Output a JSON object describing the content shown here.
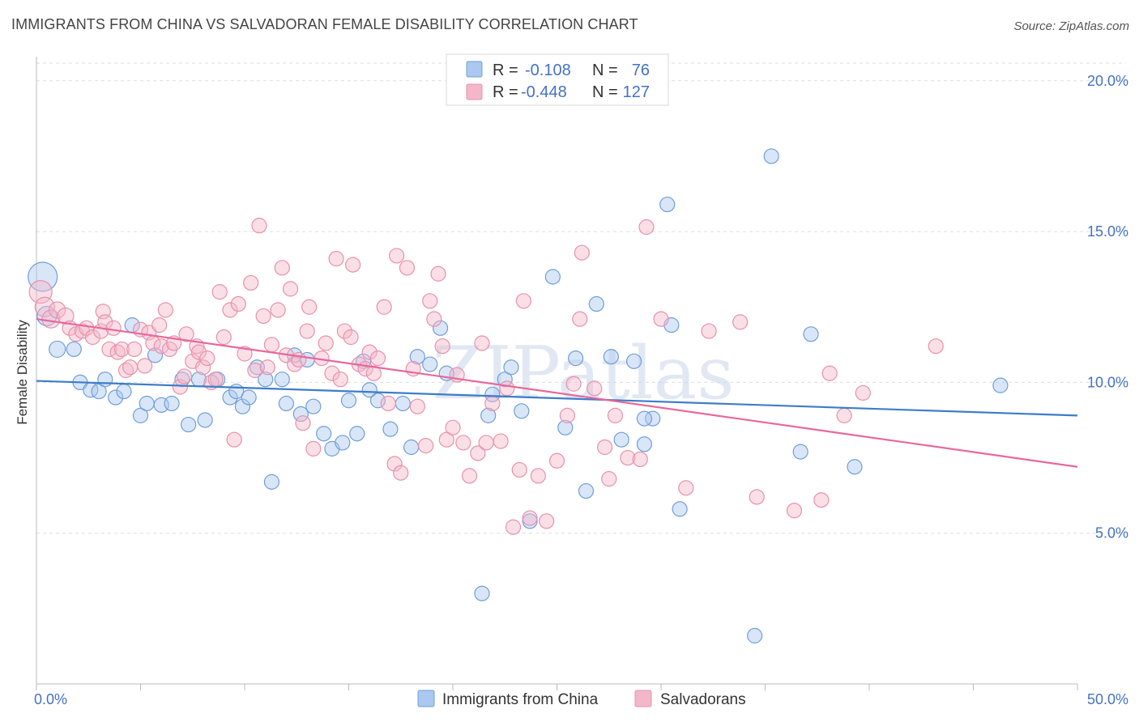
{
  "header": {
    "title": "IMMIGRANTS FROM CHINA VS SALVADORAN FEMALE DISABILITY CORRELATION CHART",
    "source": "Source: ZipAtlas.com"
  },
  "watermark": "ZIPatlas",
  "colors": {
    "blue_fill": "#aac8f0",
    "blue_stroke": "#6f9fd8",
    "blue_line": "#3d7cc9",
    "pink_fill": "#f4b7c9",
    "pink_stroke": "#e891ac",
    "pink_line": "#e8689a",
    "tick_text": "#4472c4",
    "grid": "#dddddd"
  },
  "legend": {
    "rows": [
      {
        "r_label": "R =",
        "r_value": "-0.108",
        "n_label": "N =",
        "n_value": "76",
        "series": "china"
      },
      {
        "r_label": "R =",
        "r_value": "-0.448",
        "n_label": "N =",
        "n_value": "127",
        "series": "salvadoran"
      }
    ]
  },
  "bottom_legend": [
    {
      "label": "Immigrants from China",
      "series": "china"
    },
    {
      "label": "Salvadorans",
      "series": "salvadoran"
    }
  ],
  "chart_data": {
    "type": "scatter",
    "title": "IMMIGRANTS FROM CHINA VS SALVADORAN FEMALE DISABILITY CORRELATION CHART",
    "xlabel": "",
    "ylabel": "Female Disability",
    "xlim": [
      0,
      50
    ],
    "ylim": [
      0,
      20.8
    ],
    "x_tick_labels": [
      {
        "value": 0,
        "label": "0.0%"
      },
      {
        "value": 50,
        "label": "50.0%"
      }
    ],
    "y_tick_labels": [
      {
        "value": 5,
        "label": "5.0%"
      },
      {
        "value": 10,
        "label": "10.0%"
      },
      {
        "value": 15,
        "label": "15.0%"
      },
      {
        "value": 20,
        "label": "20.0%"
      }
    ],
    "grid": true,
    "legend_position": "top-center",
    "series": [
      {
        "name": "Immigrants from China",
        "key": "china",
        "trend": {
          "x": [
            0,
            50
          ],
          "y": [
            10.05,
            8.9
          ]
        },
        "points": [
          [
            0.3,
            13.5,
            18
          ],
          [
            0.5,
            12.2,
            12
          ],
          [
            1.0,
            11.1,
            10
          ],
          [
            1.8,
            11.1,
            9
          ],
          [
            2.1,
            10.0,
            9
          ],
          [
            2.6,
            9.75,
            9
          ],
          [
            3.0,
            9.7,
            9
          ],
          [
            3.3,
            10.1,
            9
          ],
          [
            3.8,
            9.5,
            9
          ],
          [
            4.2,
            9.7,
            9
          ],
          [
            4.6,
            11.9,
            9
          ],
          [
            5.0,
            8.9,
            9
          ],
          [
            5.3,
            9.3,
            9
          ],
          [
            5.7,
            10.9,
            9
          ],
          [
            6.0,
            9.25,
            9
          ],
          [
            6.5,
            9.3,
            9
          ],
          [
            7.0,
            10.1,
            9
          ],
          [
            7.3,
            8.6,
            9
          ],
          [
            7.8,
            10.1,
            9
          ],
          [
            8.1,
            8.75,
            9
          ],
          [
            8.7,
            10.1,
            9
          ],
          [
            9.3,
            9.5,
            9
          ],
          [
            9.6,
            9.7,
            9
          ],
          [
            9.9,
            9.2,
            9
          ],
          [
            10.2,
            9.5,
            9
          ],
          [
            10.6,
            10.5,
            9
          ],
          [
            11.0,
            10.1,
            9
          ],
          [
            11.3,
            6.7,
            9
          ],
          [
            11.8,
            10.1,
            9
          ],
          [
            12.0,
            9.3,
            9
          ],
          [
            12.4,
            10.9,
            9
          ],
          [
            12.7,
            8.95,
            9
          ],
          [
            13.0,
            10.75,
            9
          ],
          [
            13.3,
            9.2,
            9
          ],
          [
            13.8,
            8.3,
            9
          ],
          [
            14.2,
            7.8,
            9
          ],
          [
            14.7,
            8.0,
            9
          ],
          [
            15.0,
            9.4,
            9
          ],
          [
            15.4,
            8.3,
            9
          ],
          [
            15.7,
            10.7,
            9
          ],
          [
            16.0,
            9.75,
            9
          ],
          [
            16.4,
            9.4,
            9
          ],
          [
            17.0,
            8.45,
            9
          ],
          [
            17.6,
            9.3,
            9
          ],
          [
            18.0,
            7.85,
            9
          ],
          [
            18.3,
            10.85,
            9
          ],
          [
            18.9,
            10.6,
            9
          ],
          [
            19.4,
            11.8,
            9
          ],
          [
            19.7,
            10.3,
            9
          ],
          [
            21.4,
            3.0,
            9
          ],
          [
            21.7,
            8.9,
            9
          ],
          [
            21.9,
            9.6,
            9
          ],
          [
            22.5,
            10.1,
            9
          ],
          [
            22.8,
            10.5,
            9
          ],
          [
            23.3,
            9.05,
            9
          ],
          [
            23.7,
            5.4,
            9
          ],
          [
            24.8,
            13.5,
            9
          ],
          [
            25.4,
            8.5,
            9
          ],
          [
            25.9,
            10.8,
            9
          ],
          [
            26.4,
            6.4,
            9
          ],
          [
            26.9,
            12.6,
            9
          ],
          [
            27.6,
            10.85,
            9
          ],
          [
            28.1,
            8.1,
            9
          ],
          [
            28.7,
            10.7,
            9
          ],
          [
            29.2,
            7.95,
            9
          ],
          [
            29.6,
            8.8,
            9
          ],
          [
            30.3,
            15.9,
            9
          ],
          [
            30.5,
            11.9,
            9
          ],
          [
            30.9,
            5.8,
            9
          ],
          [
            34.5,
            1.6,
            9
          ],
          [
            35.3,
            17.5,
            9
          ],
          [
            36.7,
            7.7,
            9
          ],
          [
            37.2,
            11.6,
            9
          ],
          [
            39.3,
            7.2,
            9
          ],
          [
            46.3,
            9.9,
            9
          ],
          [
            29.2,
            8.8,
            9
          ]
        ]
      },
      {
        "name": "Salvadorans",
        "key": "salvadoran",
        "trend": {
          "x": [
            0,
            50
          ],
          "y": [
            12.1,
            7.2
          ]
        },
        "points": [
          [
            0.2,
            13.0,
            14
          ],
          [
            0.4,
            12.5,
            12
          ],
          [
            0.7,
            12.1,
            11
          ],
          [
            1.0,
            12.4,
            10
          ],
          [
            1.4,
            12.2,
            10
          ],
          [
            1.6,
            11.8,
            9
          ],
          [
            1.9,
            11.6,
            9
          ],
          [
            2.2,
            11.7,
            9
          ],
          [
            2.4,
            11.8,
            9
          ],
          [
            2.7,
            11.5,
            9
          ],
          [
            3.1,
            11.7,
            9
          ],
          [
            3.2,
            12.35,
            9
          ],
          [
            3.3,
            12.0,
            9
          ],
          [
            3.5,
            11.1,
            9
          ],
          [
            3.7,
            11.8,
            9
          ],
          [
            3.9,
            11.0,
            9
          ],
          [
            4.1,
            11.1,
            9
          ],
          [
            4.3,
            10.4,
            9
          ],
          [
            4.5,
            10.5,
            9
          ],
          [
            4.7,
            11.1,
            9
          ],
          [
            5.0,
            11.75,
            9
          ],
          [
            5.2,
            10.55,
            9
          ],
          [
            5.4,
            11.65,
            9
          ],
          [
            5.6,
            11.3,
            9
          ],
          [
            5.9,
            11.9,
            9
          ],
          [
            6.0,
            11.2,
            9
          ],
          [
            6.2,
            12.4,
            9
          ],
          [
            6.4,
            11.1,
            9
          ],
          [
            6.6,
            11.3,
            9
          ],
          [
            6.9,
            9.85,
            9
          ],
          [
            7.1,
            10.2,
            9
          ],
          [
            7.2,
            11.6,
            9
          ],
          [
            7.5,
            10.7,
            9
          ],
          [
            7.7,
            11.2,
            9
          ],
          [
            7.8,
            11.0,
            9
          ],
          [
            8.0,
            10.5,
            9
          ],
          [
            8.2,
            10.8,
            9
          ],
          [
            8.4,
            10.0,
            9
          ],
          [
            8.6,
            10.1,
            9
          ],
          [
            8.8,
            13.0,
            9
          ],
          [
            9.0,
            11.5,
            9
          ],
          [
            9.3,
            12.4,
            9
          ],
          [
            9.5,
            8.1,
            9
          ],
          [
            9.7,
            12.6,
            9
          ],
          [
            10.0,
            10.95,
            9
          ],
          [
            10.3,
            13.3,
            9
          ],
          [
            10.5,
            10.4,
            9
          ],
          [
            10.7,
            15.2,
            9
          ],
          [
            10.9,
            12.2,
            9
          ],
          [
            11.1,
            10.5,
            9
          ],
          [
            11.3,
            11.25,
            9
          ],
          [
            11.6,
            12.4,
            9
          ],
          [
            11.8,
            13.8,
            9
          ],
          [
            12.0,
            10.9,
            9
          ],
          [
            12.2,
            13.1,
            9
          ],
          [
            12.4,
            10.6,
            9
          ],
          [
            12.6,
            10.75,
            9
          ],
          [
            12.8,
            8.65,
            9
          ],
          [
            13.0,
            11.7,
            9
          ],
          [
            13.1,
            12.5,
            9
          ],
          [
            13.3,
            7.8,
            9
          ],
          [
            13.7,
            10.8,
            9
          ],
          [
            13.9,
            11.3,
            9
          ],
          [
            14.2,
            10.3,
            9
          ],
          [
            14.4,
            14.1,
            9
          ],
          [
            14.6,
            10.1,
            9
          ],
          [
            14.8,
            11.7,
            9
          ],
          [
            15.1,
            11.5,
            9
          ],
          [
            15.2,
            13.9,
            9
          ],
          [
            15.5,
            10.6,
            9
          ],
          [
            15.8,
            10.45,
            9
          ],
          [
            16.0,
            11.0,
            9
          ],
          [
            16.2,
            10.3,
            9
          ],
          [
            16.4,
            10.8,
            9
          ],
          [
            16.7,
            12.5,
            9
          ],
          [
            16.9,
            9.3,
            9
          ],
          [
            17.2,
            7.3,
            9
          ],
          [
            17.3,
            14.2,
            9
          ],
          [
            17.5,
            7.0,
            9
          ],
          [
            17.8,
            13.8,
            9
          ],
          [
            18.1,
            10.45,
            9
          ],
          [
            18.3,
            9.2,
            9
          ],
          [
            18.7,
            7.9,
            9
          ],
          [
            18.9,
            12.7,
            9
          ],
          [
            19.1,
            12.1,
            9
          ],
          [
            19.3,
            13.6,
            9
          ],
          [
            19.5,
            11.2,
            9
          ],
          [
            19.7,
            8.1,
            9
          ],
          [
            20.0,
            8.5,
            9
          ],
          [
            20.2,
            10.25,
            9
          ],
          [
            20.5,
            8.0,
            9
          ],
          [
            20.8,
            6.9,
            9
          ],
          [
            21.2,
            7.65,
            9
          ],
          [
            21.4,
            11.3,
            9
          ],
          [
            21.6,
            8.0,
            9
          ],
          [
            21.9,
            9.3,
            9
          ],
          [
            22.3,
            8.05,
            9
          ],
          [
            22.6,
            9.8,
            9
          ],
          [
            22.9,
            5.2,
            9
          ],
          [
            23.2,
            7.1,
            9
          ],
          [
            23.4,
            12.7,
            9
          ],
          [
            23.7,
            5.5,
            9
          ],
          [
            24.1,
            6.9,
            9
          ],
          [
            24.5,
            5.4,
            9
          ],
          [
            25.0,
            7.4,
            9
          ],
          [
            25.5,
            8.9,
            9
          ],
          [
            25.8,
            9.95,
            9
          ],
          [
            26.1,
            12.1,
            9
          ],
          [
            26.2,
            14.3,
            9
          ],
          [
            26.8,
            9.8,
            9
          ],
          [
            27.3,
            7.85,
            9
          ],
          [
            27.5,
            6.8,
            9
          ],
          [
            27.8,
            8.9,
            9
          ],
          [
            28.4,
            7.5,
            9
          ],
          [
            29.0,
            7.45,
            9
          ],
          [
            29.3,
            15.15,
            9
          ],
          [
            30.0,
            12.1,
            9
          ],
          [
            31.2,
            6.5,
            9
          ],
          [
            32.3,
            11.7,
            9
          ],
          [
            33.8,
            12.0,
            9
          ],
          [
            34.6,
            6.2,
            9
          ],
          [
            36.4,
            5.75,
            9
          ],
          [
            37.7,
            6.1,
            9
          ],
          [
            38.1,
            10.3,
            9
          ],
          [
            38.8,
            8.9,
            9
          ],
          [
            39.7,
            9.65,
            9
          ],
          [
            43.2,
            11.2,
            9
          ]
        ]
      }
    ]
  }
}
